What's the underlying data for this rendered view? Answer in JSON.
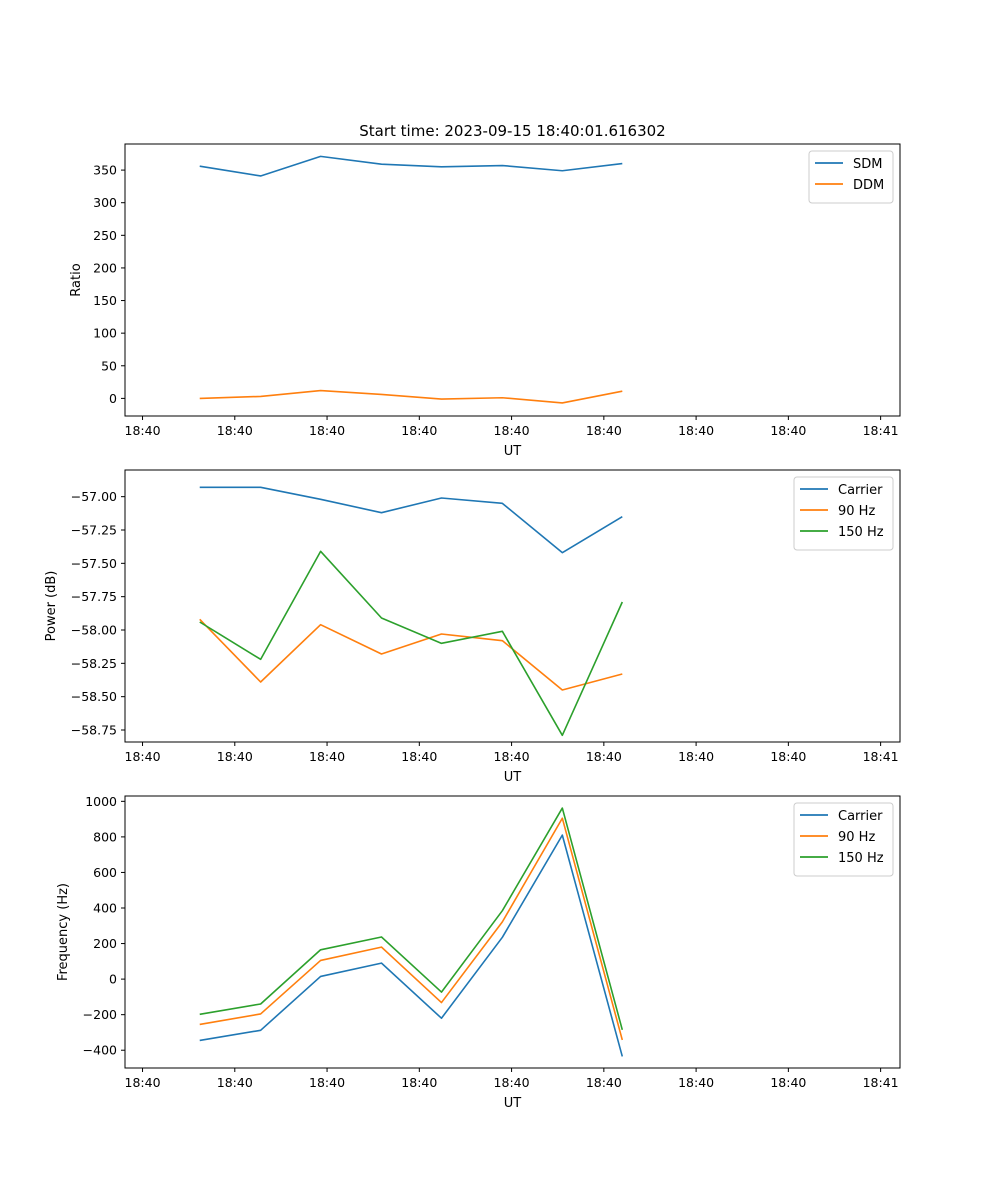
{
  "figure_title": "Start time: 2023-09-15 18:40:01.616302",
  "chart_data": [
    {
      "type": "line",
      "title": "Start time: 2023-09-15 18:40:01.616302",
      "xlabel": "UT",
      "ylabel": "Ratio",
      "xlim": [
        0,
        8.4
      ],
      "xticks": [
        0.19,
        1.19,
        2.19,
        3.19,
        4.19,
        5.19,
        6.19,
        7.19,
        8.19
      ],
      "xticklabels": [
        "18:40",
        "18:40",
        "18:40",
        "18:40",
        "18:40",
        "18:40",
        "18:40",
        "18:40",
        "18:41"
      ],
      "ylim": [
        -27,
        390
      ],
      "yticks": [
        0,
        50,
        100,
        150,
        200,
        250,
        300,
        350
      ],
      "yticklabels": [
        "0",
        "50",
        "100",
        "150",
        "200",
        "250",
        "300",
        "350"
      ],
      "legend_position": "top-right",
      "x": [
        0.81,
        1.47,
        2.12,
        2.78,
        3.43,
        4.09,
        4.74,
        5.39
      ],
      "series": [
        {
          "name": "SDM",
          "color": "#1f77b4",
          "values": [
            356,
            341,
            371,
            359,
            355,
            357,
            349,
            360
          ]
        },
        {
          "name": "DDM",
          "color": "#ff7f0e",
          "values": [
            0,
            3,
            12,
            6,
            -1,
            1,
            -7,
            11
          ]
        }
      ]
    },
    {
      "type": "line",
      "title": "",
      "xlabel": "UT",
      "ylabel": "Power (dB)",
      "xlim": [
        0,
        8.4
      ],
      "xticks": [
        0.19,
        1.19,
        2.19,
        3.19,
        4.19,
        5.19,
        6.19,
        7.19,
        8.19
      ],
      "xticklabels": [
        "18:40",
        "18:40",
        "18:40",
        "18:40",
        "18:40",
        "18:40",
        "18:40",
        "18:40",
        "18:41"
      ],
      "ylim": [
        -58.84,
        -56.8
      ],
      "yticks": [
        -57.0,
        -57.25,
        -57.5,
        -57.75,
        -58.0,
        -58.25,
        -58.5,
        -58.75
      ],
      "yticklabels": [
        "−57.00",
        "−57.25",
        "−57.50",
        "−57.75",
        "−58.00",
        "−58.25",
        "−58.50",
        "−58.75"
      ],
      "legend_position": "top-right",
      "x": [
        0.81,
        1.47,
        2.12,
        2.78,
        3.43,
        4.09,
        4.74,
        5.39
      ],
      "series": [
        {
          "name": "Carrier",
          "color": "#1f77b4",
          "values": [
            -56.93,
            -56.93,
            -57.02,
            -57.12,
            -57.01,
            -57.05,
            -57.42,
            -57.15
          ]
        },
        {
          "name": "90 Hz",
          "color": "#ff7f0e",
          "values": [
            -57.92,
            -58.39,
            -57.96,
            -58.18,
            -58.03,
            -58.08,
            -58.45,
            -58.33
          ]
        },
        {
          "name": "150 Hz",
          "color": "#2ca02c",
          "values": [
            -57.94,
            -58.22,
            -57.41,
            -57.91,
            -58.1,
            -58.01,
            -58.79,
            -57.79
          ]
        }
      ]
    },
    {
      "type": "line",
      "title": "",
      "xlabel": "UT",
      "ylabel": "Frequency (Hz)",
      "xlim": [
        0,
        8.4
      ],
      "xticks": [
        0.19,
        1.19,
        2.19,
        3.19,
        4.19,
        5.19,
        6.19,
        7.19,
        8.19
      ],
      "xticklabels": [
        "18:40",
        "18:40",
        "18:40",
        "18:40",
        "18:40",
        "18:40",
        "18:40",
        "18:40",
        "18:41"
      ],
      "ylim": [
        -500,
        1030
      ],
      "yticks": [
        -400,
        -200,
        0,
        200,
        400,
        600,
        800,
        1000
      ],
      "yticklabels": [
        "−400",
        "−200",
        "0",
        "200",
        "400",
        "600",
        "800",
        "1000"
      ],
      "legend_position": "top-right",
      "x": [
        0.81,
        1.47,
        2.12,
        2.78,
        3.43,
        4.09,
        4.74,
        5.39
      ],
      "series": [
        {
          "name": "Carrier",
          "color": "#1f77b4",
          "values": [
            -345,
            -288,
            15,
            90,
            -220,
            235,
            810,
            -435
          ]
        },
        {
          "name": "90 Hz",
          "color": "#ff7f0e",
          "values": [
            -255,
            -196,
            105,
            180,
            -132,
            322,
            905,
            -342
          ]
        },
        {
          "name": "150 Hz",
          "color": "#2ca02c",
          "values": [
            -198,
            -140,
            165,
            237,
            -73,
            385,
            962,
            -285
          ]
        }
      ]
    }
  ]
}
